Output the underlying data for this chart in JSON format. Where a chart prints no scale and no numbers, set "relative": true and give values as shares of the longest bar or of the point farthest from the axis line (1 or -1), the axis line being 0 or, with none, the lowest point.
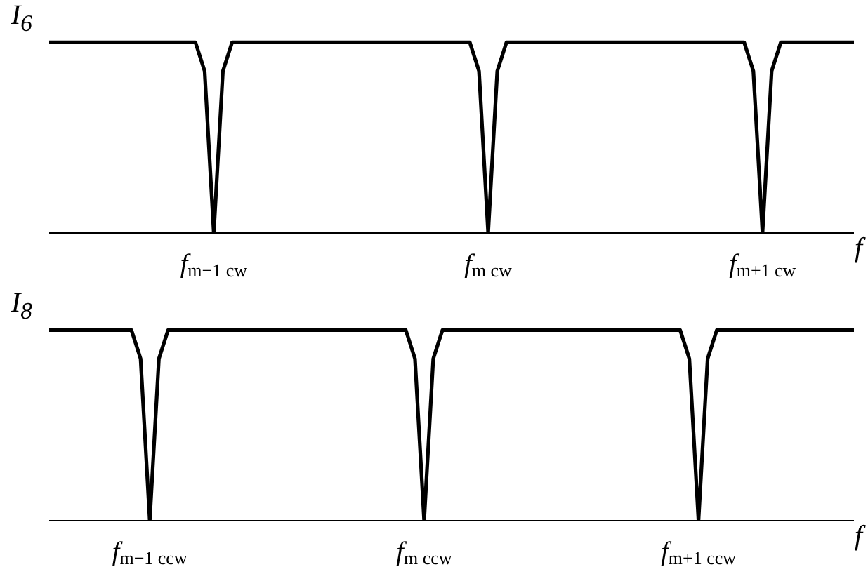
{
  "chart_data": [
    {
      "type": "line",
      "ylabel": "I$_{6}$",
      "xlabel": "f",
      "relative": true,
      "color": "#000000",
      "marker": "none",
      "line_style": "solid",
      "categories": [
        null,
        null,
        null,
        null,
        null,
        null,
        null,
        null,
        null,
        null,
        null,
        null,
        null,
        null,
        null,
        null,
        null,
        null,
        "f$_{m−1 cw}$",
        null,
        null,
        null,
        null,
        null,
        null,
        null,
        null,
        null,
        null,
        null,
        null,
        null,
        null,
        null,
        null,
        null,
        null,
        null,
        null,
        null,
        null,
        null,
        null,
        null,
        null,
        null,
        null,
        null,
        "f$_{m cw}$",
        null,
        null,
        null,
        null,
        null,
        null,
        null,
        null,
        null,
        null,
        null,
        null,
        null,
        null,
        null,
        null,
        null,
        null,
        null,
        null,
        null,
        null,
        null,
        null,
        null,
        null,
        null,
        null,
        null,
        "f$_{m+1 cw}$",
        null,
        null,
        null,
        null,
        null,
        null,
        null,
        null,
        null,
        null
      ],
      "values": [
        1,
        1,
        1,
        1,
        1,
        1,
        1,
        1,
        1,
        1,
        1,
        1,
        1,
        1,
        1,
        1,
        1,
        0.85,
        0,
        0.85,
        1,
        1,
        1,
        1,
        1,
        1,
        1,
        1,
        1,
        1,
        1,
        1,
        1,
        1,
        1,
        1,
        1,
        1,
        1,
        1,
        1,
        1,
        1,
        1,
        1,
        1,
        1,
        0.85,
        0,
        0.85,
        1,
        1,
        1,
        1,
        1,
        1,
        1,
        1,
        1,
        1,
        1,
        1,
        1,
        1,
        1,
        1,
        1,
        1,
        1,
        1,
        1,
        1,
        1,
        1,
        1,
        1,
        1,
        0.85,
        0,
        0.85,
        1,
        1,
        1,
        1,
        1,
        1,
        1,
        1,
        1
      ]
    },
    {
      "type": "line",
      "ylabel": "I$_{8}$",
      "xlabel": "f",
      "relative": true,
      "color": "#000000",
      "marker": "none",
      "line_style": "solid",
      "categories": [
        null,
        null,
        null,
        null,
        null,
        null,
        null,
        null,
        null,
        null,
        null,
        "f$_{m−1 ccw}$",
        null,
        null,
        null,
        null,
        null,
        null,
        null,
        null,
        null,
        null,
        null,
        null,
        null,
        null,
        null,
        null,
        null,
        null,
        null,
        null,
        null,
        null,
        null,
        null,
        null,
        null,
        null,
        null,
        null,
        "f$_{m ccw}$",
        null,
        null,
        null,
        null,
        null,
        null,
        null,
        null,
        null,
        null,
        null,
        null,
        null,
        null,
        null,
        null,
        null,
        null,
        null,
        null,
        null,
        null,
        null,
        null,
        null,
        null,
        null,
        null,
        null,
        "f$_{m+1 ccw}$",
        null,
        null,
        null,
        null,
        null,
        null,
        null,
        null,
        null,
        null,
        null,
        null,
        null,
        null,
        null,
        null,
        null
      ],
      "values": [
        1,
        1,
        1,
        1,
        1,
        1,
        1,
        1,
        1,
        1,
        0.85,
        0,
        0.85,
        1,
        1,
        1,
        1,
        1,
        1,
        1,
        1,
        1,
        1,
        1,
        1,
        1,
        1,
        1,
        1,
        1,
        1,
        1,
        1,
        1,
        1,
        1,
        1,
        1,
        1,
        1,
        0.85,
        0,
        0.85,
        1,
        1,
        1,
        1,
        1,
        1,
        1,
        1,
        1,
        1,
        1,
        1,
        1,
        1,
        1,
        1,
        1,
        1,
        1,
        1,
        1,
        1,
        1,
        1,
        1,
        1,
        1,
        0.85,
        0,
        0.85,
        1,
        1,
        1,
        1,
        1,
        1,
        1,
        1,
        1,
        1,
        1,
        1,
        1,
        1,
        1,
        1
      ]
    }
  ]
}
